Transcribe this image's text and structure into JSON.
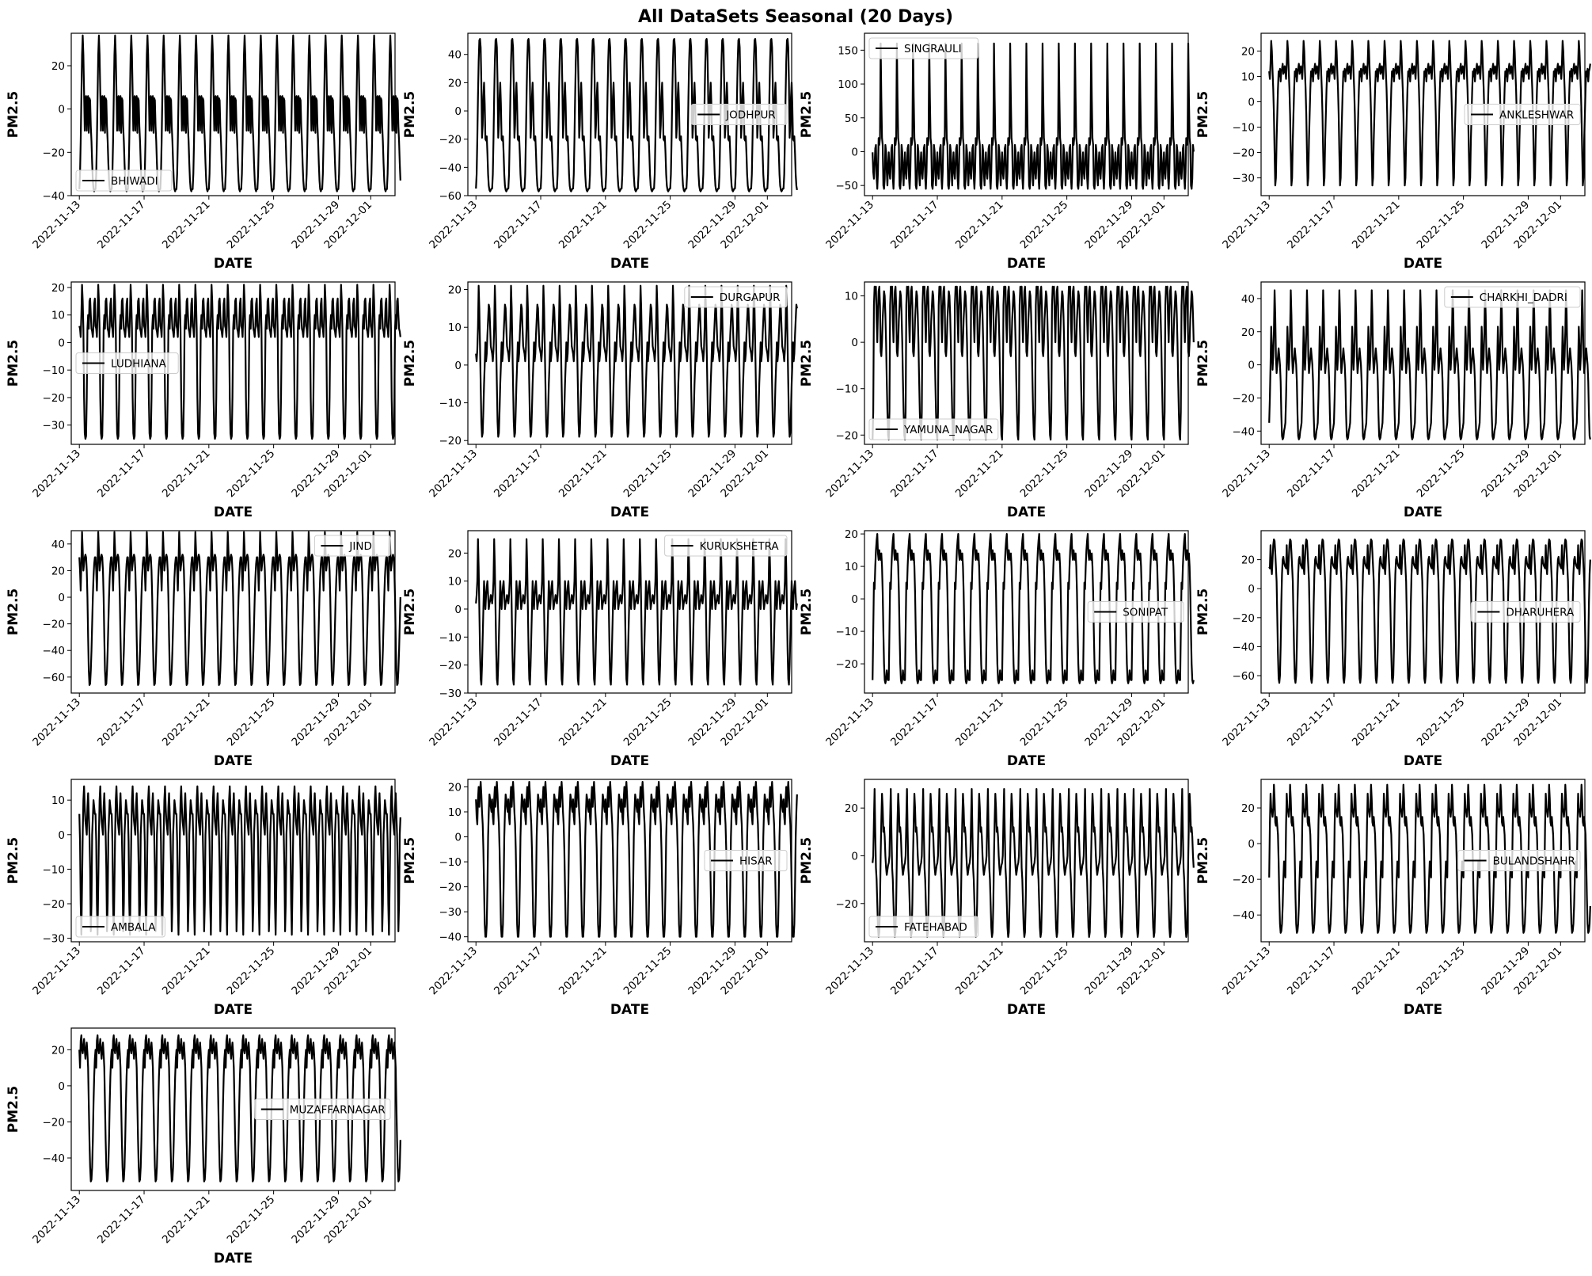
{
  "title": "All DataSets Seasonal (20 Days)",
  "chart_data": {
    "type": "line",
    "xlabel": "DATE",
    "ylabel": "PM2.5",
    "x_range": [
      "2022-11-12T12:00",
      "2022-12-02T12:00"
    ],
    "x_ticks": [
      "2022-11-13",
      "2022-11-17",
      "2022-11-21",
      "2022-11-25",
      "2022-11-29",
      "2022-12-01"
    ],
    "line_color": "#000000",
    "grid": false,
    "period_days": 1,
    "series": [
      {
        "name": "BHIWADI",
        "ylim": [
          -40,
          35
        ],
        "y_ticks": [
          -40,
          -20,
          0,
          20
        ],
        "legend": "lower-left",
        "daily_profile": [
          -37,
          -30,
          -15,
          5,
          25,
          34,
          25,
          8,
          -10,
          5,
          6,
          -10,
          5,
          6,
          -11,
          5,
          4,
          -8,
          -15,
          -25,
          -33,
          -37,
          -38,
          -37
        ]
      },
      {
        "name": "JODHPUR",
        "ylim": [
          -60,
          55
        ],
        "y_ticks": [
          -60,
          -40,
          -20,
          0,
          20,
          40
        ],
        "legend": "center-right",
        "daily_profile": [
          -55,
          -45,
          -20,
          10,
          35,
          50,
          51,
          45,
          20,
          -19,
          -10,
          10,
          20,
          5,
          -20,
          -21,
          -18,
          -30,
          -45,
          -53,
          -56,
          -57,
          -56,
          -55
        ]
      },
      {
        "name": "SINGRAULI",
        "ylim": [
          -65,
          175
        ],
        "y_ticks": [
          -50,
          0,
          50,
          100,
          150
        ],
        "legend": "upper-left",
        "daily_profile": [
          -1,
          -30,
          -40,
          -20,
          5,
          10,
          -38,
          -55,
          -30,
          20,
          10,
          20,
          160,
          80,
          20,
          10,
          -50,
          -55,
          -40,
          10,
          0,
          -30,
          -50,
          -20
        ]
      },
      {
        "name": "ANKLESHWAR",
        "ylim": [
          -37,
          27
        ],
        "y_ticks": [
          -30,
          -20,
          -10,
          0,
          10,
          20
        ],
        "legend": "center-right",
        "daily_profile": [
          12,
          9,
          15,
          24,
          20,
          12,
          5,
          -5,
          -20,
          -33,
          -30,
          -15,
          -5,
          5,
          12,
          10,
          13,
          8,
          12,
          13,
          15,
          11,
          12,
          14
        ]
      },
      {
        "name": "LUDHIANA",
        "ylim": [
          -37,
          22
        ],
        "y_ticks": [
          -30,
          -20,
          -10,
          0,
          10,
          20
        ],
        "legend": "center-left",
        "daily_profile": [
          6,
          5,
          2,
          10,
          21,
          15,
          5,
          -20,
          -33,
          -35,
          -34,
          -20,
          5,
          10,
          5,
          15,
          16,
          10,
          5,
          4,
          2,
          6,
          14,
          16
        ]
      },
      {
        "name": "DURGAPUR",
        "ylim": [
          -21,
          22
        ],
        "y_ticks": [
          -20,
          -10,
          0,
          10,
          20
        ],
        "legend": "upper-right",
        "daily_profile": [
          3,
          1,
          4,
          10,
          21,
          15,
          5,
          -5,
          -15,
          -19,
          -18,
          -12,
          -5,
          0,
          6,
          1,
          3,
          8,
          12,
          16,
          15,
          10,
          5,
          4
        ]
      },
      {
        "name": "YAMUNA_NAGAR",
        "ylim": [
          -22,
          13
        ],
        "y_ticks": [
          -20,
          -10,
          0,
          10
        ],
        "legend": "lower-left",
        "daily_profile": [
          -21,
          -15,
          8,
          12,
          11,
          12,
          5,
          0,
          7,
          11,
          12,
          8,
          -2,
          -3,
          0,
          5,
          8,
          11,
          10,
          6,
          0,
          -8,
          -15,
          -20
        ]
      },
      {
        "name": "CHARKHI_DADRI",
        "ylim": [
          -48,
          50
        ],
        "y_ticks": [
          -40,
          -20,
          0,
          20,
          40
        ],
        "legend": "upper-right",
        "daily_profile": [
          -35,
          -20,
          0,
          23,
          10,
          -3,
          5,
          20,
          45,
          30,
          5,
          -5,
          0,
          5,
          10,
          5,
          0,
          -10,
          -30,
          -43,
          -45,
          -44,
          -40,
          -38
        ]
      },
      {
        "name": "JIND",
        "ylim": [
          -72,
          50
        ],
        "y_ticks": [
          -60,
          -40,
          -20,
          0,
          20,
          40
        ],
        "legend": "upper-right",
        "daily_profile": [
          30,
          20,
          5,
          25,
          49,
          35,
          20,
          25,
          30,
          32,
          30,
          20,
          0,
          -30,
          -55,
          -66,
          -65,
          -55,
          -40,
          -20,
          0,
          15,
          25,
          30
        ]
      },
      {
        "name": "KURUKSHETRA",
        "ylim": [
          -30,
          28
        ],
        "y_ticks": [
          -30,
          -20,
          -10,
          0,
          10,
          20
        ],
        "legend": "upper-right",
        "daily_profile": [
          2,
          5,
          10,
          25,
          15,
          0,
          -15,
          -25,
          -27,
          -20,
          -10,
          0,
          10,
          5,
          0,
          5,
          8,
          10,
          5,
          0,
          2,
          3,
          5,
          4
        ]
      },
      {
        "name": "SONIPAT",
        "ylim": [
          -29,
          21
        ],
        "y_ticks": [
          -20,
          -10,
          0,
          10,
          20
        ],
        "legend": "center-right",
        "daily_profile": [
          -25,
          -10,
          5,
          3,
          10,
          15,
          18,
          20,
          14,
          12,
          15,
          13,
          12,
          14,
          10,
          2,
          -10,
          -20,
          -25,
          -26,
          -25,
          -22,
          -24,
          -25
        ]
      },
      {
        "name": "DHARUHERA",
        "ylim": [
          -72,
          40
        ],
        "y_ticks": [
          -60,
          -40,
          -20,
          0,
          20
        ],
        "legend": "center-right",
        "daily_profile": [
          15,
          14,
          30,
          15,
          10,
          20,
          30,
          34,
          33,
          25,
          15,
          5,
          -20,
          -45,
          -62,
          -65,
          -60,
          -40,
          -10,
          10,
          20,
          22,
          18,
          16
        ]
      },
      {
        "name": "AMBALA",
        "ylim": [
          -31,
          16
        ],
        "y_ticks": [
          -30,
          -20,
          -10,
          0,
          10
        ],
        "legend": "lower-left",
        "daily_profile": [
          6,
          -2,
          -20,
          -29,
          -15,
          0,
          10,
          14,
          8,
          4,
          2,
          0,
          8,
          12,
          6,
          0,
          -10,
          -28,
          -20,
          0,
          5,
          10,
          8,
          6
        ]
      },
      {
        "name": "HISAR",
        "ylim": [
          -42,
          23
        ],
        "y_ticks": [
          -40,
          -30,
          -20,
          -10,
          0,
          10,
          20
        ],
        "legend": "center-right",
        "daily_profile": [
          15,
          8,
          5,
          15,
          20,
          12,
          18,
          22,
          17,
          10,
          5,
          -5,
          -20,
          -35,
          -40,
          -40,
          -35,
          -20,
          0,
          10,
          17,
          15,
          12,
          10
        ]
      },
      {
        "name": "FATEHABAD",
        "ylim": [
          -36,
          32
        ],
        "y_ticks": [
          -20,
          0,
          20
        ],
        "legend": "lower-left",
        "daily_profile": [
          -3,
          0,
          15,
          28,
          10,
          -5,
          -10,
          -20,
          -30,
          -34,
          -32,
          -20,
          0,
          15,
          26,
          20,
          10,
          12,
          8,
          0,
          -5,
          -8,
          -6,
          -4
        ]
      },
      {
        "name": "BULANDSHAHR",
        "ylim": [
          -55,
          36
        ],
        "y_ticks": [
          -40,
          -20,
          0,
          20
        ],
        "legend": "center-right",
        "daily_profile": [
          -19,
          10,
          28,
          20,
          18,
          15,
          20,
          33,
          25,
          12,
          10,
          15,
          10,
          5,
          -10,
          -30,
          -45,
          -50,
          -49,
          -45,
          -35,
          -20,
          -10,
          -15
        ]
      },
      {
        "name": "MUZAFFARNAGAR",
        "ylim": [
          -58,
          32
        ],
        "y_ticks": [
          -40,
          -20,
          0,
          20
        ],
        "legend": "center-right",
        "daily_profile": [
          20,
          10,
          25,
          28,
          20,
          18,
          22,
          26,
          20,
          15,
          20,
          24,
          18,
          10,
          -10,
          -30,
          -45,
          -53,
          -52,
          -45,
          -30,
          -10,
          5,
          15
        ]
      }
    ]
  }
}
